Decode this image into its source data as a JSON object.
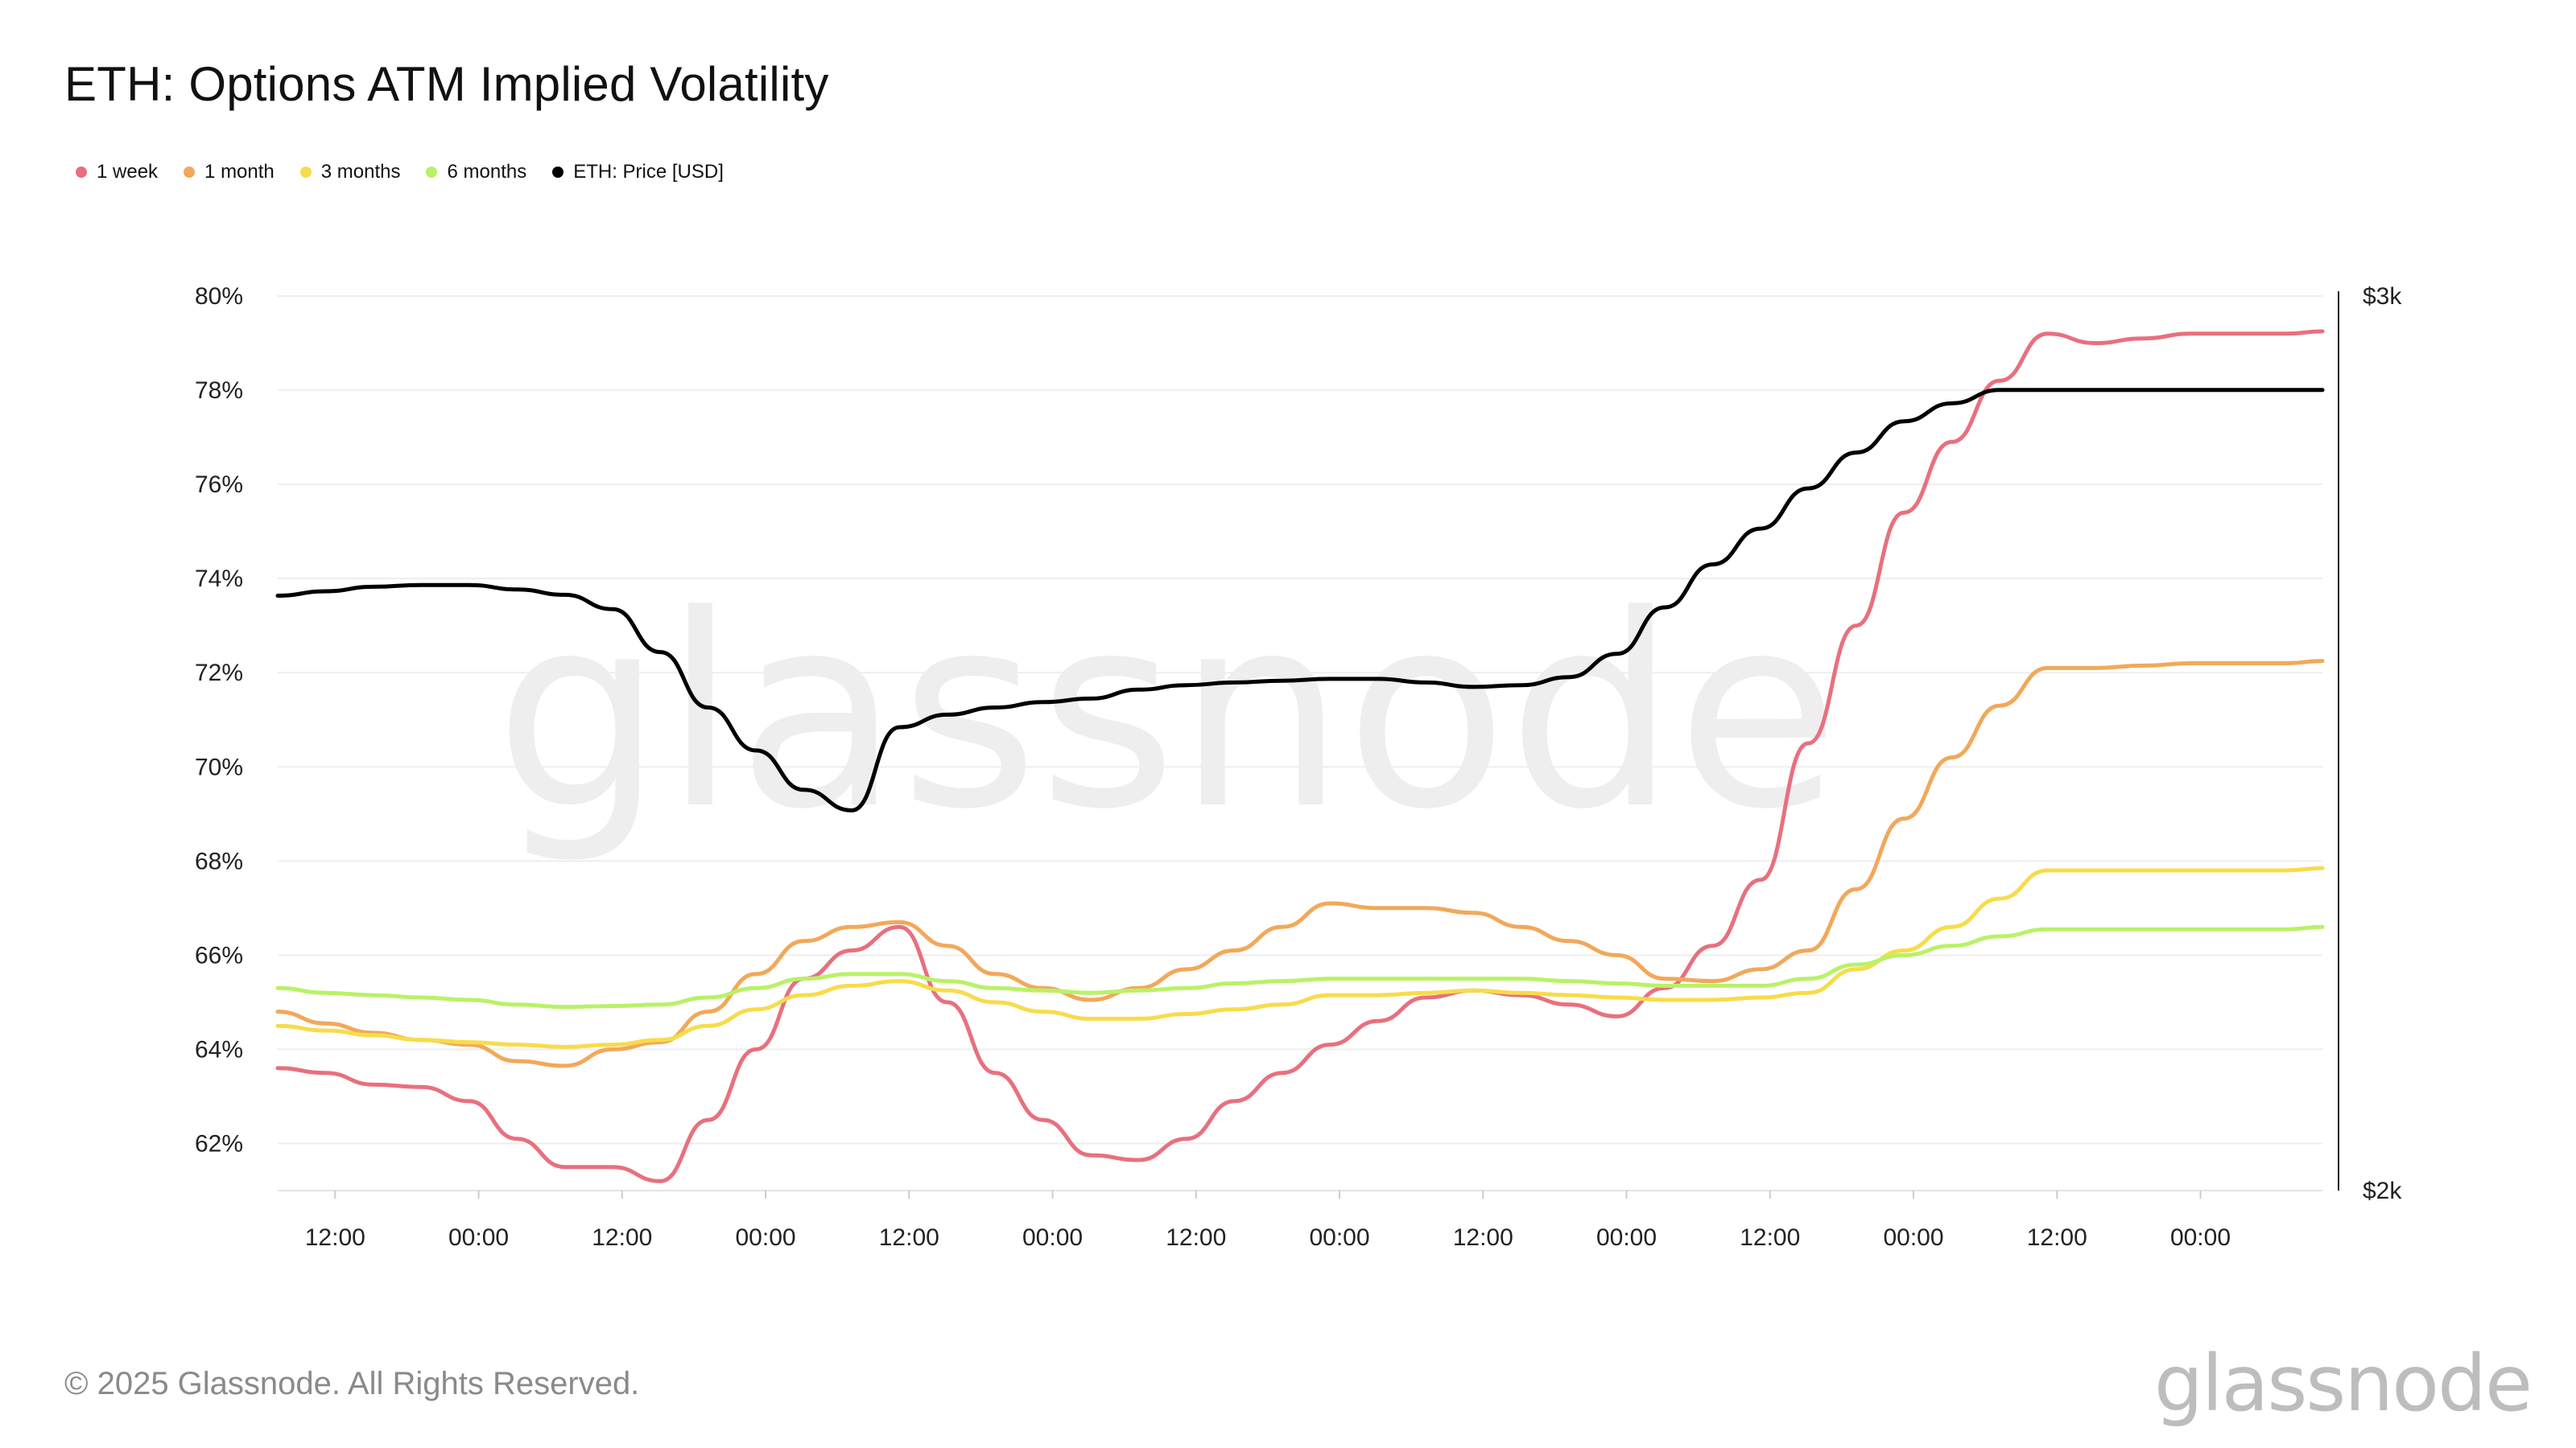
{
  "title": "ETH: Options ATM Implied Volatility",
  "footer": "© 2025 Glassnode. All Rights Reserved.",
  "brand": "glassnode",
  "legend": [
    {
      "label": "1 week",
      "color": "#e8707e"
    },
    {
      "label": "1 month",
      "color": "#f2a85a"
    },
    {
      "label": "3 months",
      "color": "#f7dc4a"
    },
    {
      "label": "6 months",
      "color": "#b8f266"
    },
    {
      "label": "ETH: Price [USD]",
      "color": "#000000"
    }
  ],
  "chart_data": {
    "type": "line",
    "title": "ETH: Options ATM Implied Volatility",
    "x_tick_labels": [
      "12:00",
      "00:00",
      "12:00",
      "00:00",
      "12:00",
      "00:00",
      "12:00",
      "00:00",
      "12:00",
      "00:00",
      "12:00",
      "00:00",
      "12:00",
      "00:00"
    ],
    "x_range_hours": [
      0,
      171
    ],
    "x_first_tick_hour": 4.8,
    "x_tick_step_hours": 12,
    "y_left": {
      "ticks": [
        "62%",
        "64%",
        "66%",
        "68%",
        "70%",
        "72%",
        "74%",
        "76%",
        "78%",
        "80%"
      ],
      "range": [
        61,
        80
      ]
    },
    "y_right": {
      "ticks": [
        "$2k",
        "$3k"
      ],
      "range": [
        2000,
        3000
      ]
    },
    "grid": true,
    "series": [
      {
        "name": "1 week",
        "color": "#e8707e",
        "axis": "left",
        "x": [
          0,
          4,
          8,
          12,
          16,
          20,
          24,
          28,
          32,
          36,
          40,
          44,
          48,
          52,
          56,
          60,
          64,
          68,
          72,
          76,
          80,
          84,
          88,
          92,
          96,
          100,
          104,
          108,
          112,
          116,
          120,
          124,
          128,
          132,
          136,
          140,
          144,
          148,
          152,
          156,
          160,
          164,
          168,
          171
        ],
        "y": [
          63.6,
          63.5,
          63.25,
          63.2,
          62.9,
          62.1,
          61.5,
          61.5,
          61.2,
          62.5,
          64.0,
          65.5,
          66.1,
          66.6,
          65.0,
          63.5,
          62.5,
          61.75,
          61.65,
          62.1,
          62.9,
          63.5,
          64.1,
          64.6,
          65.1,
          65.25,
          65.15,
          64.95,
          64.7,
          65.3,
          66.2,
          67.6,
          70.5,
          73.0,
          75.4,
          76.9,
          78.2,
          79.2,
          79.0,
          79.1,
          79.2,
          79.2,
          79.2,
          79.25
        ]
      },
      {
        "name": "1 month",
        "color": "#f2a85a",
        "axis": "left",
        "x": [
          0,
          4,
          8,
          12,
          16,
          20,
          24,
          28,
          32,
          36,
          40,
          44,
          48,
          52,
          56,
          60,
          64,
          68,
          72,
          76,
          80,
          84,
          88,
          92,
          96,
          100,
          104,
          108,
          112,
          116,
          120,
          124,
          128,
          132,
          136,
          140,
          144,
          148,
          152,
          156,
          160,
          164,
          168,
          171
        ],
        "y": [
          64.8,
          64.55,
          64.35,
          64.2,
          64.1,
          63.75,
          63.65,
          64.0,
          64.15,
          64.8,
          65.6,
          66.3,
          66.6,
          66.7,
          66.2,
          65.6,
          65.3,
          65.05,
          65.3,
          65.7,
          66.1,
          66.6,
          67.1,
          67.0,
          67.0,
          66.9,
          66.6,
          66.3,
          66.0,
          65.5,
          65.45,
          65.7,
          66.1,
          67.4,
          68.9,
          70.2,
          71.3,
          72.1,
          72.1,
          72.15,
          72.2,
          72.2,
          72.2,
          72.25
        ]
      },
      {
        "name": "3 months",
        "color": "#f7dc4a",
        "axis": "left",
        "x": [
          0,
          4,
          8,
          12,
          16,
          20,
          24,
          28,
          32,
          36,
          40,
          44,
          48,
          52,
          56,
          60,
          64,
          68,
          72,
          76,
          80,
          84,
          88,
          92,
          96,
          100,
          104,
          108,
          112,
          116,
          120,
          124,
          128,
          132,
          136,
          140,
          144,
          148,
          152,
          156,
          160,
          164,
          168,
          171
        ],
        "y": [
          64.5,
          64.4,
          64.3,
          64.2,
          64.15,
          64.1,
          64.05,
          64.1,
          64.2,
          64.5,
          64.85,
          65.15,
          65.35,
          65.45,
          65.25,
          65.0,
          64.8,
          64.65,
          64.65,
          64.75,
          64.85,
          64.95,
          65.15,
          65.15,
          65.2,
          65.25,
          65.2,
          65.15,
          65.1,
          65.05,
          65.05,
          65.1,
          65.2,
          65.7,
          66.1,
          66.6,
          67.2,
          67.8,
          67.8,
          67.8,
          67.8,
          67.8,
          67.8,
          67.85
        ]
      },
      {
        "name": "6 months",
        "color": "#b8f266",
        "axis": "left",
        "x": [
          0,
          4,
          8,
          12,
          16,
          20,
          24,
          28,
          32,
          36,
          40,
          44,
          48,
          52,
          56,
          60,
          64,
          68,
          72,
          76,
          80,
          84,
          88,
          92,
          96,
          100,
          104,
          108,
          112,
          116,
          120,
          124,
          128,
          132,
          136,
          140,
          144,
          148,
          152,
          156,
          160,
          164,
          168,
          171
        ],
        "y": [
          65.3,
          65.2,
          65.15,
          65.1,
          65.05,
          64.95,
          64.9,
          64.92,
          64.95,
          65.1,
          65.3,
          65.5,
          65.6,
          65.6,
          65.45,
          65.3,
          65.25,
          65.2,
          65.25,
          65.3,
          65.4,
          65.45,
          65.5,
          65.5,
          65.5,
          65.5,
          65.5,
          65.45,
          65.4,
          65.35,
          65.35,
          65.35,
          65.5,
          65.8,
          66.0,
          66.2,
          66.4,
          66.55,
          66.55,
          66.55,
          66.55,
          66.55,
          66.55,
          66.6
        ]
      },
      {
        "name": "ETH: Price [USD]",
        "color": "#000000",
        "axis": "right",
        "x": [
          0,
          4,
          8,
          12,
          16,
          20,
          24,
          28,
          32,
          36,
          40,
          44,
          48,
          52,
          56,
          60,
          64,
          68,
          72,
          76,
          80,
          84,
          88,
          92,
          96,
          100,
          104,
          108,
          112,
          116,
          120,
          124,
          128,
          132,
          136,
          140,
          144,
          148,
          152,
          156,
          160,
          164,
          168,
          171
        ],
        "y": [
          2665,
          2670,
          2675,
          2677,
          2677,
          2672,
          2666,
          2650,
          2602,
          2540,
          2492,
          2448,
          2425,
          2518,
          2532,
          2540,
          2546,
          2550,
          2560,
          2565,
          2568,
          2570,
          2572,
          2572,
          2568,
          2563,
          2565,
          2574,
          2600,
          2652,
          2700,
          2740,
          2785,
          2825,
          2860,
          2880,
          2895,
          2895,
          2895,
          2895,
          2895,
          2895,
          2895,
          2895
        ]
      }
    ]
  }
}
